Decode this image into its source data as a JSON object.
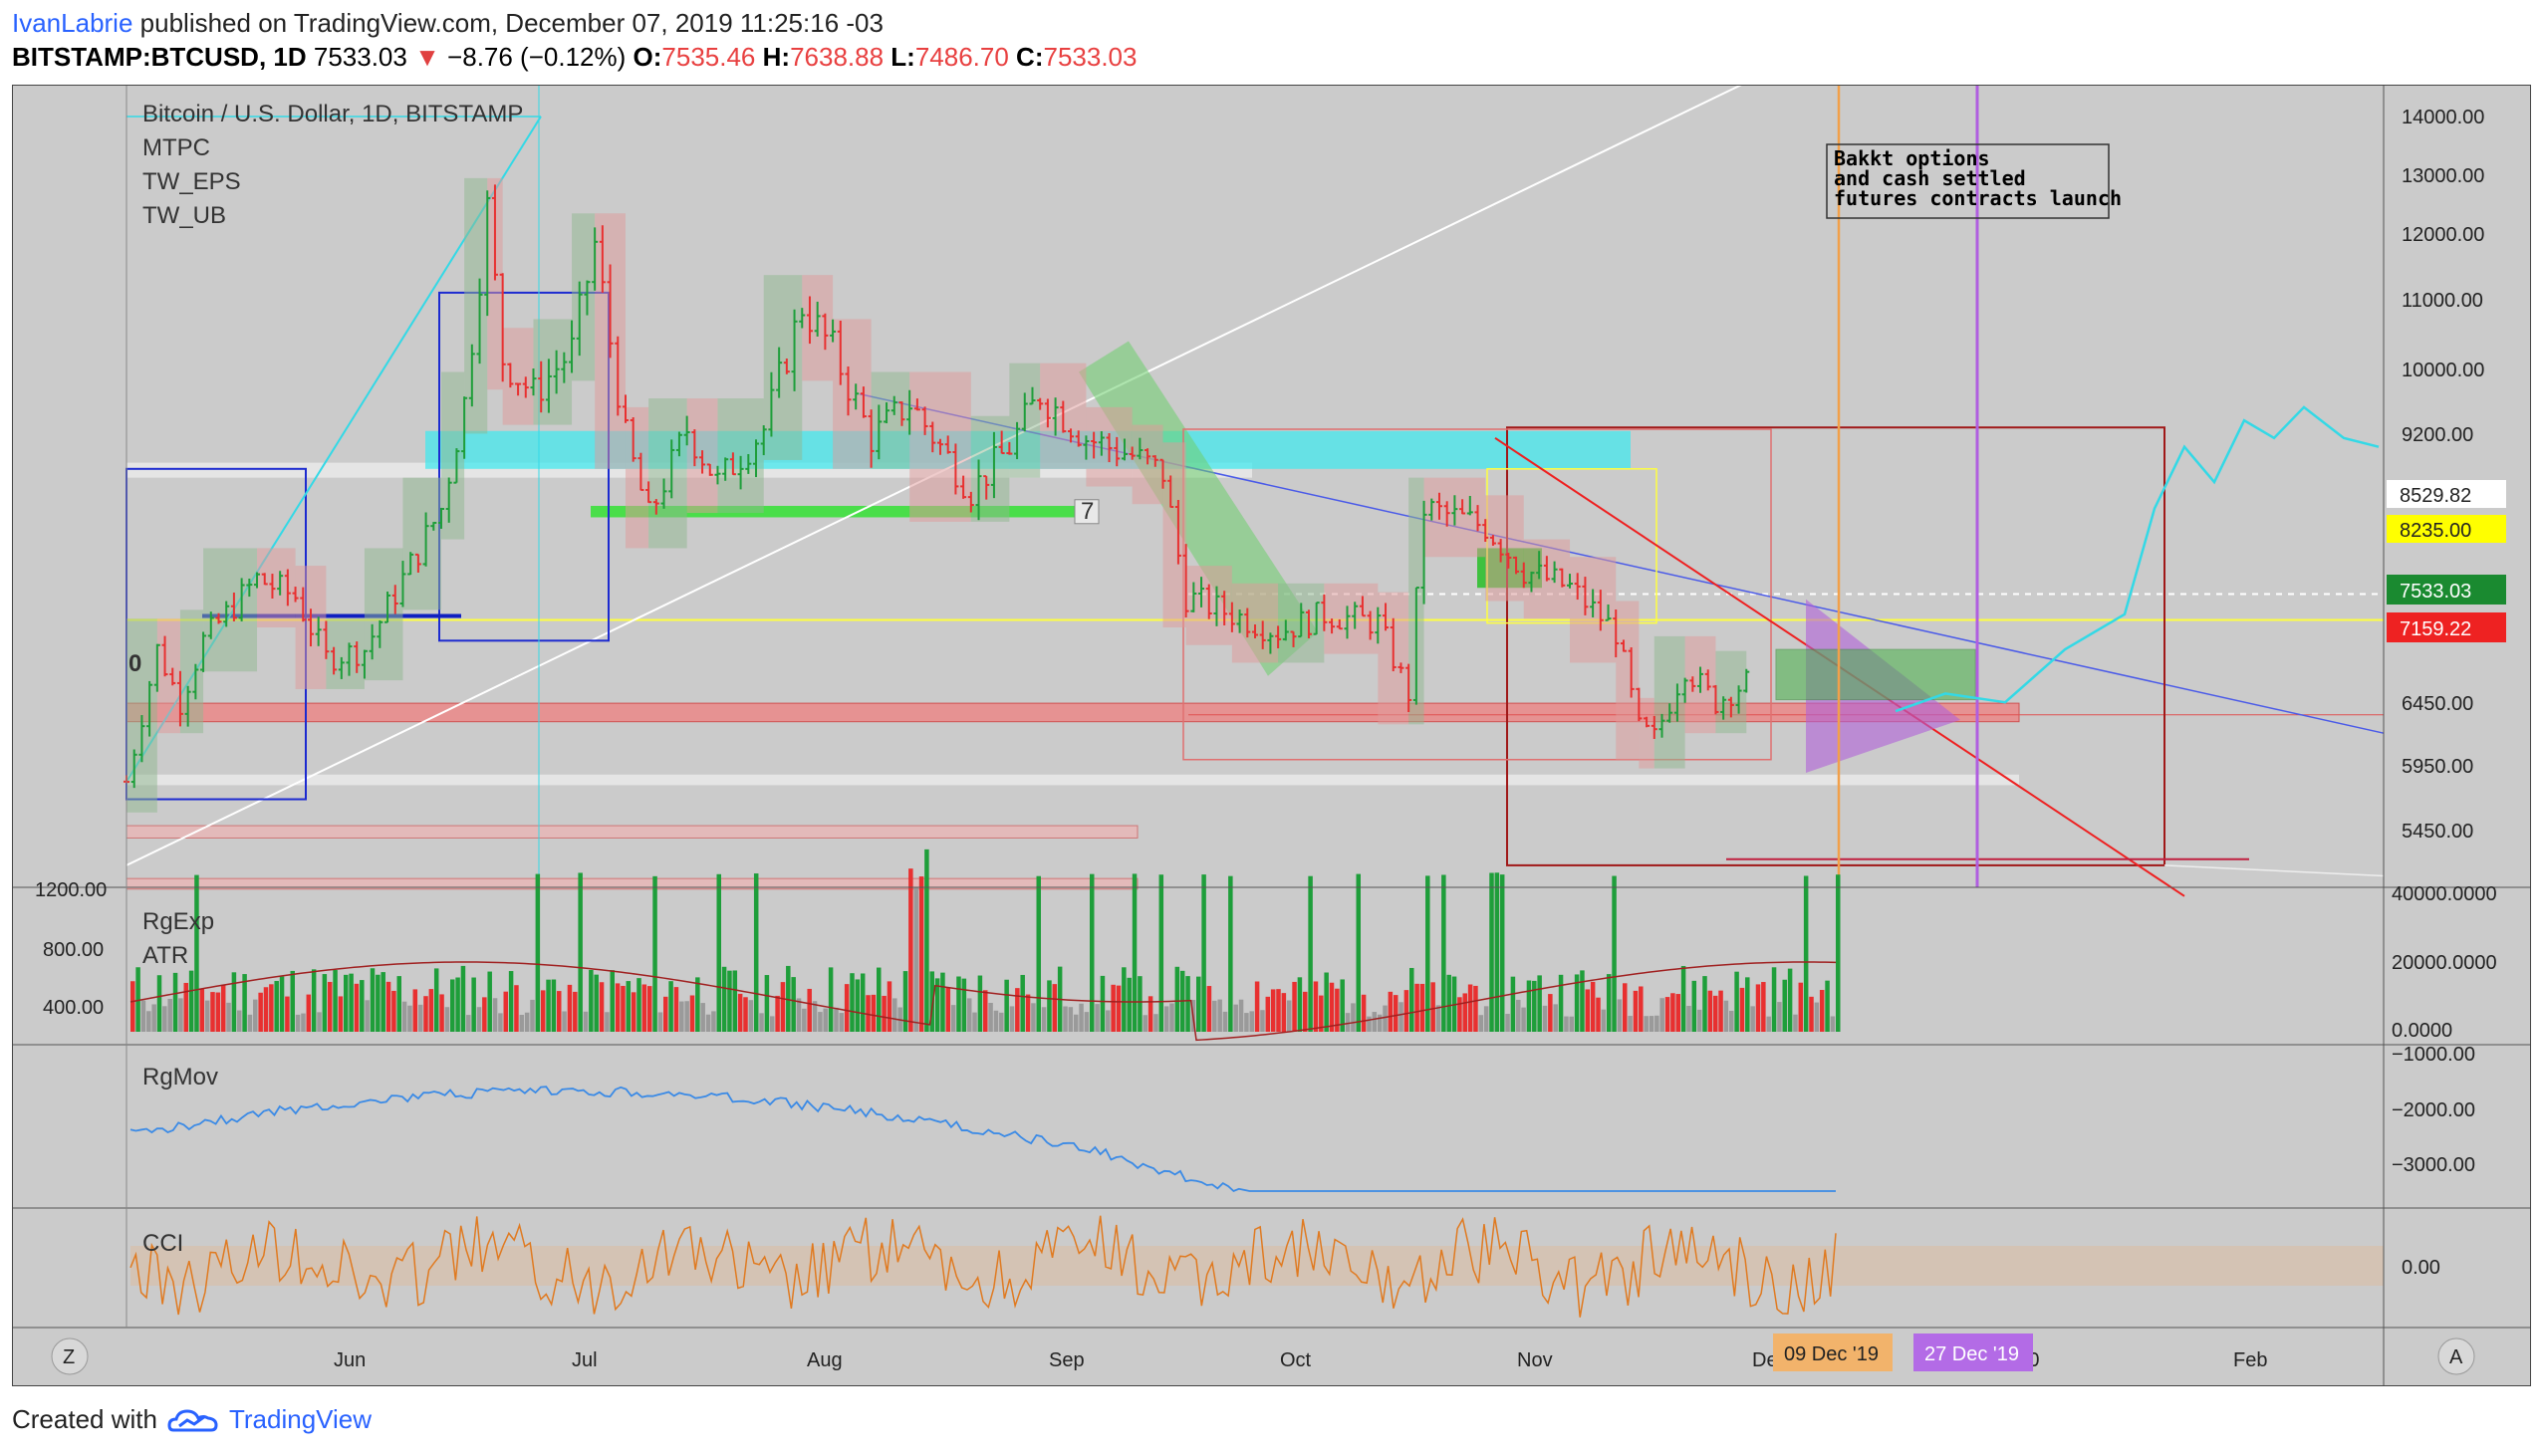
{
  "header": {
    "author": "IvanLabrie",
    "published_text": "published on TradingView.com, December 07, 2019 11:25:16 -03",
    "symbol": "BITSTAMP:BTCUSD, 1D",
    "last": "7533.03",
    "change_arrow": "▼",
    "change": "−8.76 (−0.12%)",
    "o_label": "O:",
    "o_value": "7535.46",
    "h_label": "H:",
    "h_value": "7638.88",
    "l_label": "L:",
    "l_value": "7486.70",
    "c_label": "C:",
    "c_value": "7533.03"
  },
  "main_pane": {
    "title": "Bitcoin / U.S. Dollar, 1D, BITSTAMP",
    "indicators": [
      "MTPC",
      "TW_EPS",
      "TW_UB"
    ],
    "note_lines": [
      "Bakkt options",
      "and cash settled",
      "futures contracts launch"
    ],
    "left_marker": "0",
    "box_marker": "7",
    "price_ticks": [
      "14000.00",
      "13000.00",
      "12000.00",
      "11000.00",
      "10000.00",
      "9200.00",
      "8529.82",
      "8235.00",
      "7533.03",
      "7159.22",
      "6450.00",
      "5950.00",
      "5450.00"
    ],
    "price_badges": [
      {
        "text": "8529.82",
        "bg": "#ffffff",
        "fg": "#000000"
      },
      {
        "text": "8235.00",
        "bg": "#ffff00",
        "fg": "#000000"
      },
      {
        "text": "7533.03",
        "bg": "#1a8a30",
        "fg": "#ffffff"
      },
      {
        "text": "7159.22",
        "bg": "#ee2222",
        "fg": "#ffffff"
      }
    ]
  },
  "volume_pane": {
    "labels": [
      "RgExp",
      "ATR"
    ],
    "left_ticks": [
      "1200.00",
      "800.00",
      "400.00"
    ],
    "right_ticks": [
      "40000.0000",
      "20000.0000",
      "0.0000"
    ]
  },
  "rgmov_pane": {
    "label": "RgMov",
    "right_ticks": [
      "−1000.00",
      "−2000.00",
      "−3000.00"
    ]
  },
  "cci_pane": {
    "label": "CCI",
    "right_ticks": [
      "0.00"
    ]
  },
  "x_axis": {
    "left_button": "Z",
    "right_button": "A",
    "months": [
      "Jun",
      "Jul",
      "Aug",
      "Sep",
      "Oct",
      "Nov",
      "Dec",
      "2020",
      "Feb"
    ],
    "date_badges": [
      {
        "text": "09 Dec '19",
        "bg": "#f2b36b"
      },
      {
        "text": "27 Dec '19",
        "bg": "#b36be6"
      }
    ]
  },
  "footer": {
    "created_with": "Created with",
    "brand": "TradingView"
  },
  "colors": {
    "bull": "#1e9e3a",
    "bear": "#e83030",
    "pane_bg": "#cbcbcb",
    "cyan": "#33d9e6",
    "orange_line": "#f2a04a",
    "purple_line": "#b05ee0"
  },
  "chart_data": {
    "type": "candlestick",
    "title": "Bitcoin / U.S. Dollar, 1D, BITSTAMP",
    "x_range": [
      "2019-05-10",
      "2020-02-28"
    ],
    "y_range": [
      5200,
      14300
    ],
    "last_close": 7533.03,
    "close_path": [
      [
        "2019-05-10",
        6400
      ],
      [
        "2019-05-14",
        7900
      ],
      [
        "2019-05-17",
        7300
      ],
      [
        "2019-05-20",
        8000
      ],
      [
        "2019-05-27",
        8700
      ],
      [
        "2019-06-01",
        8500
      ],
      [
        "2019-06-05",
        7800
      ],
      [
        "2019-06-10",
        7900
      ],
      [
        "2019-06-15",
        8700
      ],
      [
        "2019-06-20",
        9500
      ],
      [
        "2019-06-23",
        10700
      ],
      [
        "2019-06-26",
        12900
      ],
      [
        "2019-06-28",
        11200
      ],
      [
        "2019-07-02",
        10800
      ],
      [
        "2019-07-07",
        11300
      ],
      [
        "2019-07-10",
        12500
      ],
      [
        "2019-07-14",
        10300
      ],
      [
        "2019-07-17",
        9400
      ],
      [
        "2019-07-22",
        10400
      ],
      [
        "2019-07-26",
        9800
      ],
      [
        "2019-08-01",
        10400
      ],
      [
        "2019-08-06",
        11800
      ],
      [
        "2019-08-10",
        11300
      ],
      [
        "2019-08-15",
        10300
      ],
      [
        "2019-08-20",
        10700
      ],
      [
        "2019-08-28",
        9700
      ],
      [
        "2019-09-02",
        10200
      ],
      [
        "2019-09-06",
        10800
      ],
      [
        "2019-09-12",
        10300
      ],
      [
        "2019-09-18",
        10100
      ],
      [
        "2019-09-22",
        9900
      ],
      [
        "2019-09-25",
        8500
      ],
      [
        "2019-10-01",
        8300
      ],
      [
        "2019-10-07",
        8100
      ],
      [
        "2019-10-13",
        8300
      ],
      [
        "2019-10-20",
        8200
      ],
      [
        "2019-10-24",
        7400
      ],
      [
        "2019-10-26",
        9500
      ],
      [
        "2019-11-03",
        9300
      ],
      [
        "2019-11-08",
        8800
      ],
      [
        "2019-11-14",
        8600
      ],
      [
        "2019-11-20",
        8100
      ],
      [
        "2019-11-23",
        7000
      ],
      [
        "2019-11-25",
        6900
      ],
      [
        "2019-11-29",
        7700
      ],
      [
        "2019-12-03",
        7300
      ],
      [
        "2019-12-07",
        7533
      ]
    ],
    "annotations": [
      "Bakkt options and cash settled futures contracts launch"
    ],
    "vertical_markers": [
      "09 Dec '19",
      "27 Dec '19"
    ],
    "horizontal_levels": [
      8529.82,
      8235.0,
      7159.22
    ]
  }
}
